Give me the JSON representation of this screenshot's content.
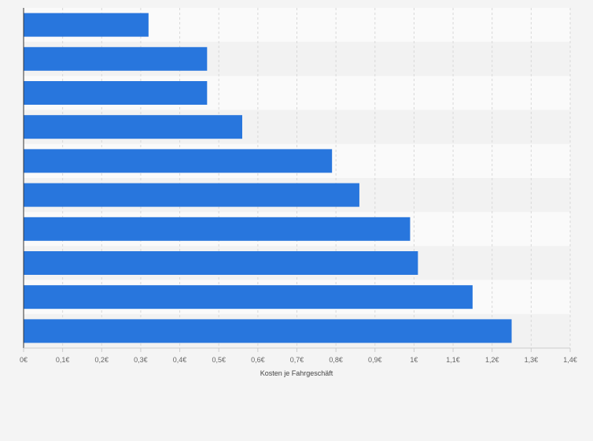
{
  "chart_data": {
    "type": "bar",
    "orientation": "horizontal",
    "categories": [
      "",
      "",
      "",
      "",
      "",
      "",
      "",
      "",
      "",
      ""
    ],
    "values": [
      0.32,
      0.47,
      0.47,
      0.56,
      0.79,
      0.86,
      0.99,
      1.01,
      1.15,
      1.25
    ],
    "title": "",
    "xlabel": "Kosten je Fahrgeschäft",
    "ylabel": "",
    "xlim": [
      0,
      1.4
    ],
    "x_ticks": [
      0,
      0.1,
      0.2,
      0.3,
      0.4,
      0.5,
      0.6,
      0.7,
      0.8,
      0.9,
      1.0,
      1.1,
      1.2,
      1.3,
      1.4
    ],
    "x_tick_labels": [
      "0€",
      "0,1€",
      "0,2€",
      "0,3€",
      "0,4€",
      "0,5€",
      "0,6€",
      "0,7€",
      "0,8€",
      "0,9€",
      "1€",
      "1,1€",
      "1,2€",
      "1,3€",
      "1,4€"
    ],
    "grid": true,
    "legend": "none",
    "colors": {
      "bar": "#2876dd",
      "band_light": "#fafafa",
      "band_dark": "#f2f2f2",
      "grid": "#d8d8d8",
      "axis": "#333333",
      "background": "#f4f4f4"
    }
  }
}
